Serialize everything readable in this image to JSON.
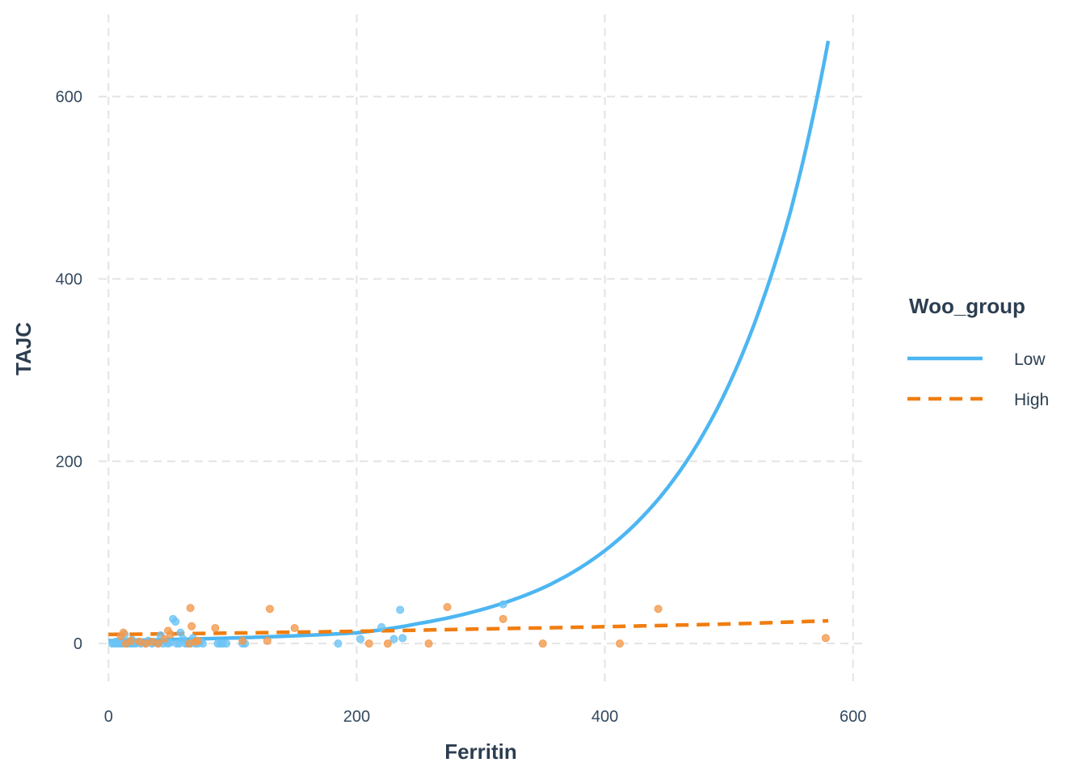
{
  "chart_data": {
    "type": "scatter",
    "title": "",
    "xlabel": "Ferritin",
    "ylabel": "TAJC",
    "xlim": [
      -8,
      608
    ],
    "ylim": [
      -45,
      690
    ],
    "x_ticks": [
      0,
      200,
      400,
      600
    ],
    "y_ticks": [
      0,
      200,
      400,
      600
    ],
    "grid": true,
    "legend": {
      "title": "Woo_group",
      "position": "right",
      "entries": [
        {
          "label": "Low",
          "color": "#4db6f2",
          "linestyle": "solid"
        },
        {
          "label": "High",
          "color": "#f07d10",
          "linestyle": "dashed"
        }
      ]
    },
    "series": [
      {
        "name": "Low",
        "color": "#4db6f2",
        "point_color": "#6cc3f5",
        "points": [
          [
            3,
            0
          ],
          [
            4,
            1
          ],
          [
            5,
            0
          ],
          [
            6,
            2
          ],
          [
            7,
            0
          ],
          [
            8,
            1
          ],
          [
            9,
            0
          ],
          [
            10,
            3
          ],
          [
            11,
            0
          ],
          [
            12,
            1
          ],
          [
            13,
            10
          ],
          [
            14,
            0
          ],
          [
            15,
            2
          ],
          [
            16,
            0
          ],
          [
            17,
            1
          ],
          [
            18,
            0
          ],
          [
            19,
            4
          ],
          [
            20,
            0
          ],
          [
            21,
            1
          ],
          [
            22,
            0
          ],
          [
            24,
            2
          ],
          [
            26,
            0
          ],
          [
            28,
            1
          ],
          [
            30,
            0
          ],
          [
            32,
            3
          ],
          [
            35,
            0
          ],
          [
            38,
            1
          ],
          [
            40,
            0
          ],
          [
            42,
            9
          ],
          [
            44,
            0
          ],
          [
            46,
            2
          ],
          [
            48,
            0
          ],
          [
            50,
            1
          ],
          [
            52,
            27
          ],
          [
            54,
            24
          ],
          [
            55,
            0
          ],
          [
            57,
            0
          ],
          [
            58,
            12
          ],
          [
            60,
            5
          ],
          [
            62,
            0
          ],
          [
            64,
            0
          ],
          [
            66,
            0
          ],
          [
            68,
            6
          ],
          [
            70,
            0
          ],
          [
            72,
            0
          ],
          [
            74,
            2
          ],
          [
            76,
            0
          ],
          [
            88,
            0
          ],
          [
            90,
            0
          ],
          [
            92,
            0
          ],
          [
            95,
            0
          ],
          [
            108,
            0
          ],
          [
            110,
            0
          ],
          [
            185,
            0
          ],
          [
            203,
            5
          ],
          [
            220,
            18
          ],
          [
            230,
            5
          ],
          [
            235,
            37
          ],
          [
            237,
            6
          ],
          [
            318,
            43
          ]
        ],
        "fit_curve": [
          [
            0,
            3.2
          ],
          [
            50,
            4.4
          ],
          [
            100,
            6.1
          ],
          [
            150,
            8.5
          ],
          [
            200,
            11.8
          ],
          [
            250,
            22
          ],
          [
            300,
            37
          ],
          [
            350,
            61
          ],
          [
            400,
            102
          ],
          [
            450,
            170
          ],
          [
            500,
            284
          ],
          [
            550,
            476
          ],
          [
            580,
            661
          ]
        ]
      },
      {
        "name": "High",
        "color": "#f07d10",
        "point_color": "#f3984a",
        "points": [
          [
            10,
            8
          ],
          [
            12,
            12
          ],
          [
            14,
            0
          ],
          [
            18,
            3
          ],
          [
            25,
            2
          ],
          [
            30,
            0
          ],
          [
            35,
            2
          ],
          [
            40,
            0
          ],
          [
            45,
            5
          ],
          [
            48,
            14
          ],
          [
            50,
            10
          ],
          [
            65,
            0
          ],
          [
            66,
            39
          ],
          [
            67,
            19
          ],
          [
            70,
            2
          ],
          [
            72,
            3
          ],
          [
            86,
            17
          ],
          [
            108,
            3
          ],
          [
            128,
            3
          ],
          [
            130,
            38
          ],
          [
            150,
            17
          ],
          [
            210,
            0
          ],
          [
            225,
            0
          ],
          [
            258,
            0
          ],
          [
            273,
            40
          ],
          [
            318,
            27
          ],
          [
            350,
            0
          ],
          [
            412,
            0
          ],
          [
            443,
            38
          ],
          [
            578,
            6
          ]
        ],
        "fit_curve": [
          [
            0,
            10
          ],
          [
            100,
            11.5
          ],
          [
            200,
            13.5
          ],
          [
            300,
            16
          ],
          [
            400,
            18.5
          ],
          [
            500,
            21.5
          ],
          [
            580,
            25
          ]
        ]
      }
    ]
  }
}
